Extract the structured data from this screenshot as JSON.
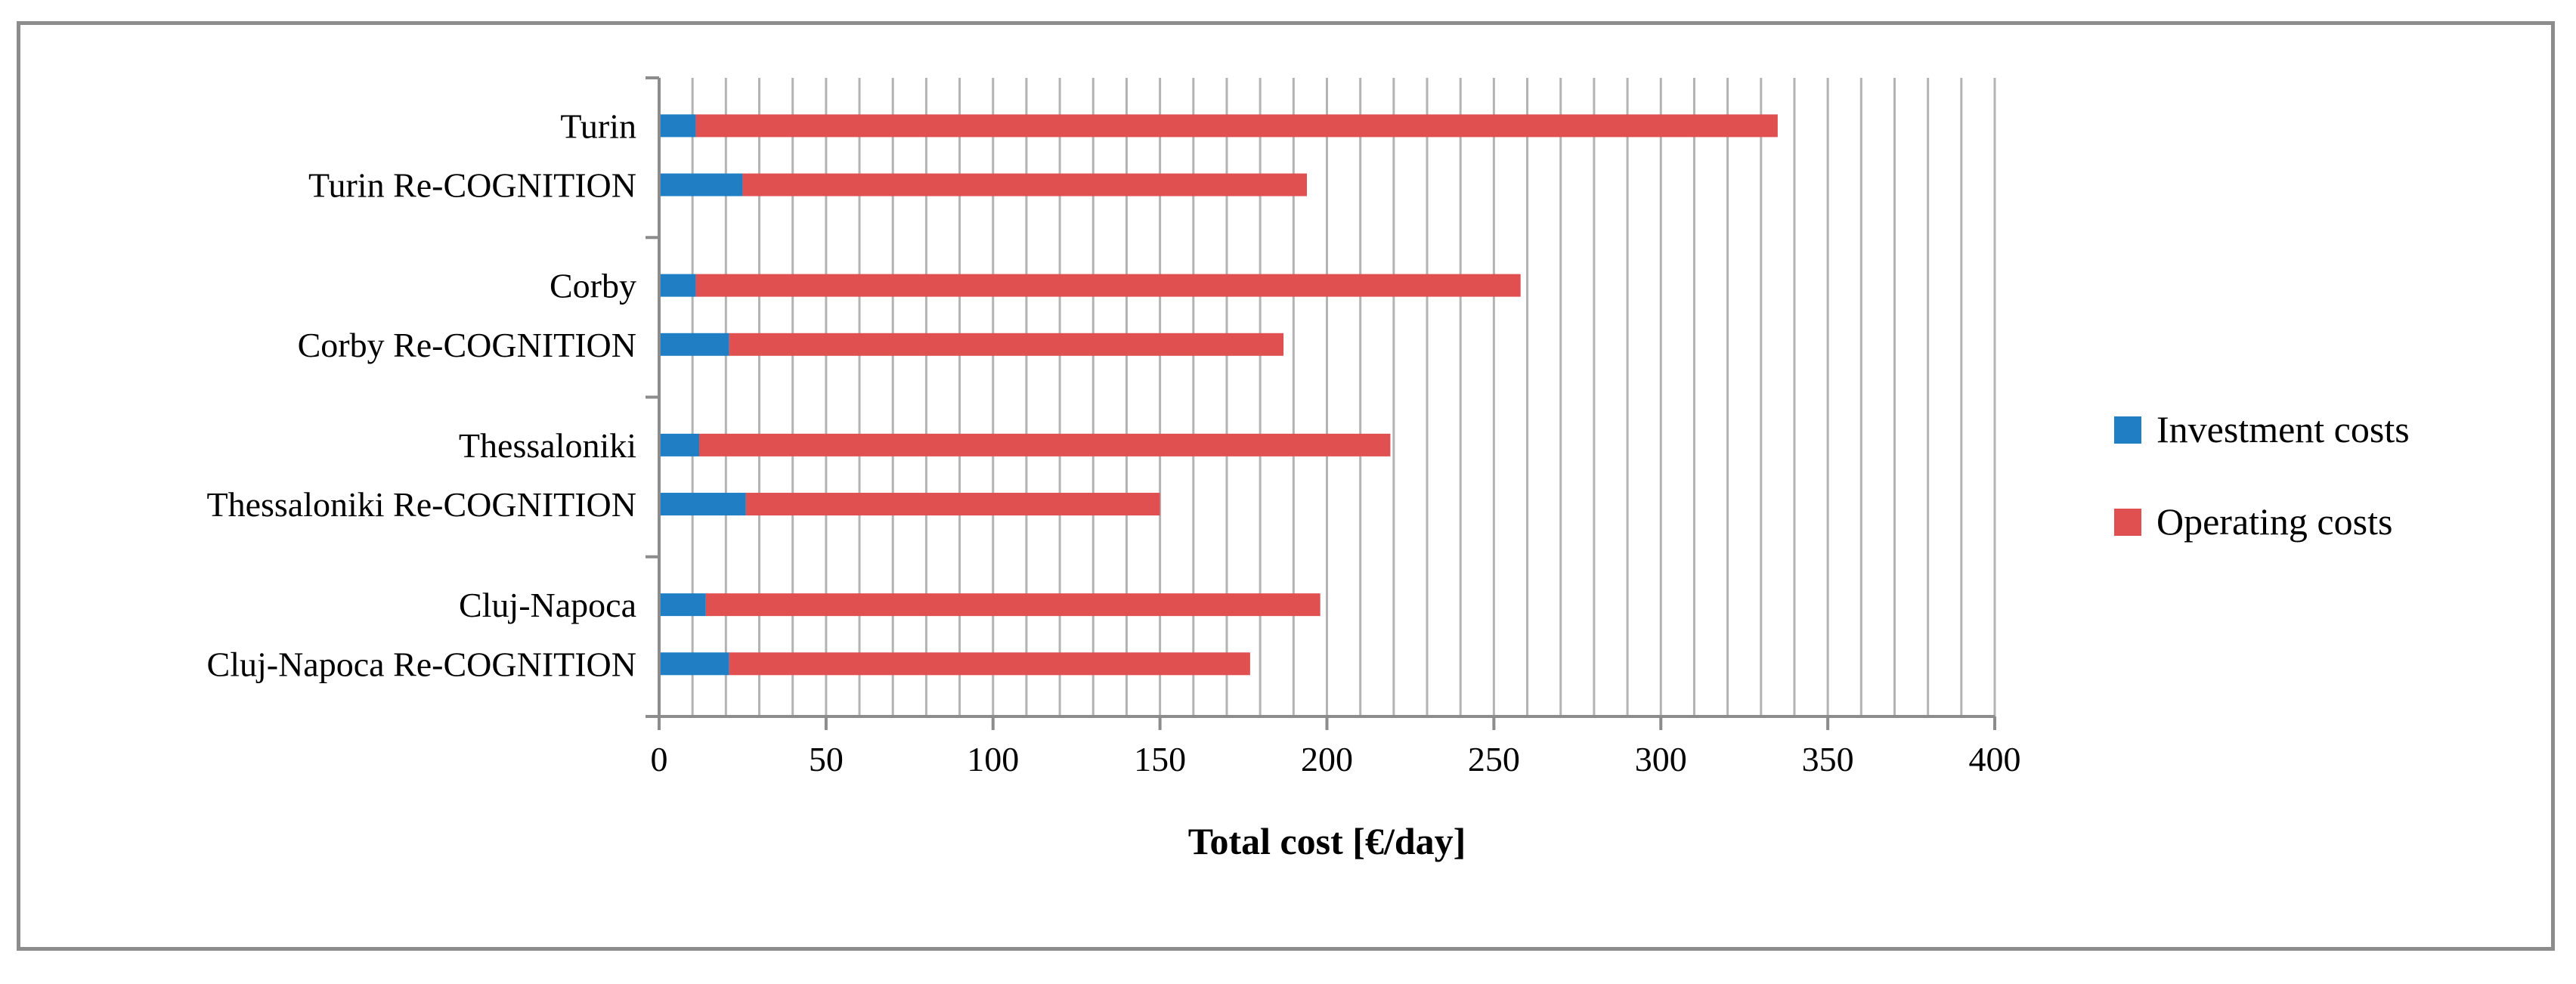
{
  "chart_data": {
    "type": "bar",
    "orientation": "horizontal",
    "stacked": true,
    "categories": [
      "Turin",
      "Turin Re-COGNITION",
      "Corby",
      "Corby Re-COGNITION",
      "Thessaloniki",
      "Thessaloniki Re-COGNITION",
      "Cluj-Napoca",
      "Cluj-Napoca Re-COGNITION"
    ],
    "series": [
      {
        "name": "Investment costs",
        "color": "#1f7ec4",
        "values": [
          11,
          25,
          11,
          21,
          12,
          26,
          14,
          21
        ]
      },
      {
        "name": "Operating costs",
        "color": "#e05050",
        "values": [
          324,
          169,
          247,
          166,
          207,
          124,
          184,
          156
        ]
      }
    ],
    "xlabel": "Total cost [€/day]",
    "ylabel": "",
    "xlim": [
      0,
      400
    ],
    "xticks": [
      "0",
      "50",
      "100",
      "150",
      "200",
      "250",
      "300",
      "350",
      "400"
    ],
    "grid": "vertical",
    "legend_position": "right"
  }
}
